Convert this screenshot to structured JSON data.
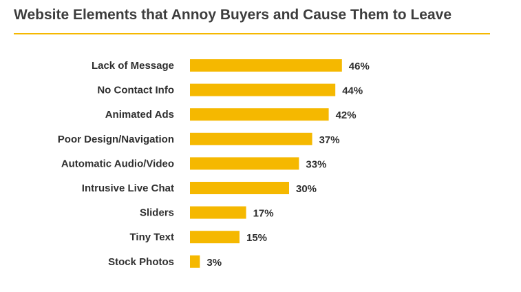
{
  "chart_data": {
    "type": "bar",
    "orientation": "horizontal",
    "title": "Website Elements that Annoy Buyers and Cause Them to Leave",
    "categories": [
      "Lack of Message",
      "No Contact Info",
      "Animated Ads",
      "Poor Design/Navigation",
      "Automatic Audio/Video",
      "Intrusive Live Chat",
      "Sliders",
      "Tiny Text",
      "Stock Photos"
    ],
    "values": [
      46,
      44,
      42,
      37,
      33,
      30,
      17,
      15,
      3
    ],
    "value_labels": [
      "46%",
      "44%",
      "42%",
      "37%",
      "33%",
      "30%",
      "17%",
      "15%",
      "3%"
    ],
    "unit": "%",
    "xlim": [
      0,
      100
    ],
    "grid": false,
    "legend": "none",
    "colors": {
      "bar": "#F5B800",
      "title_rule": "#F5B800",
      "text": "#2f2f2f"
    }
  }
}
